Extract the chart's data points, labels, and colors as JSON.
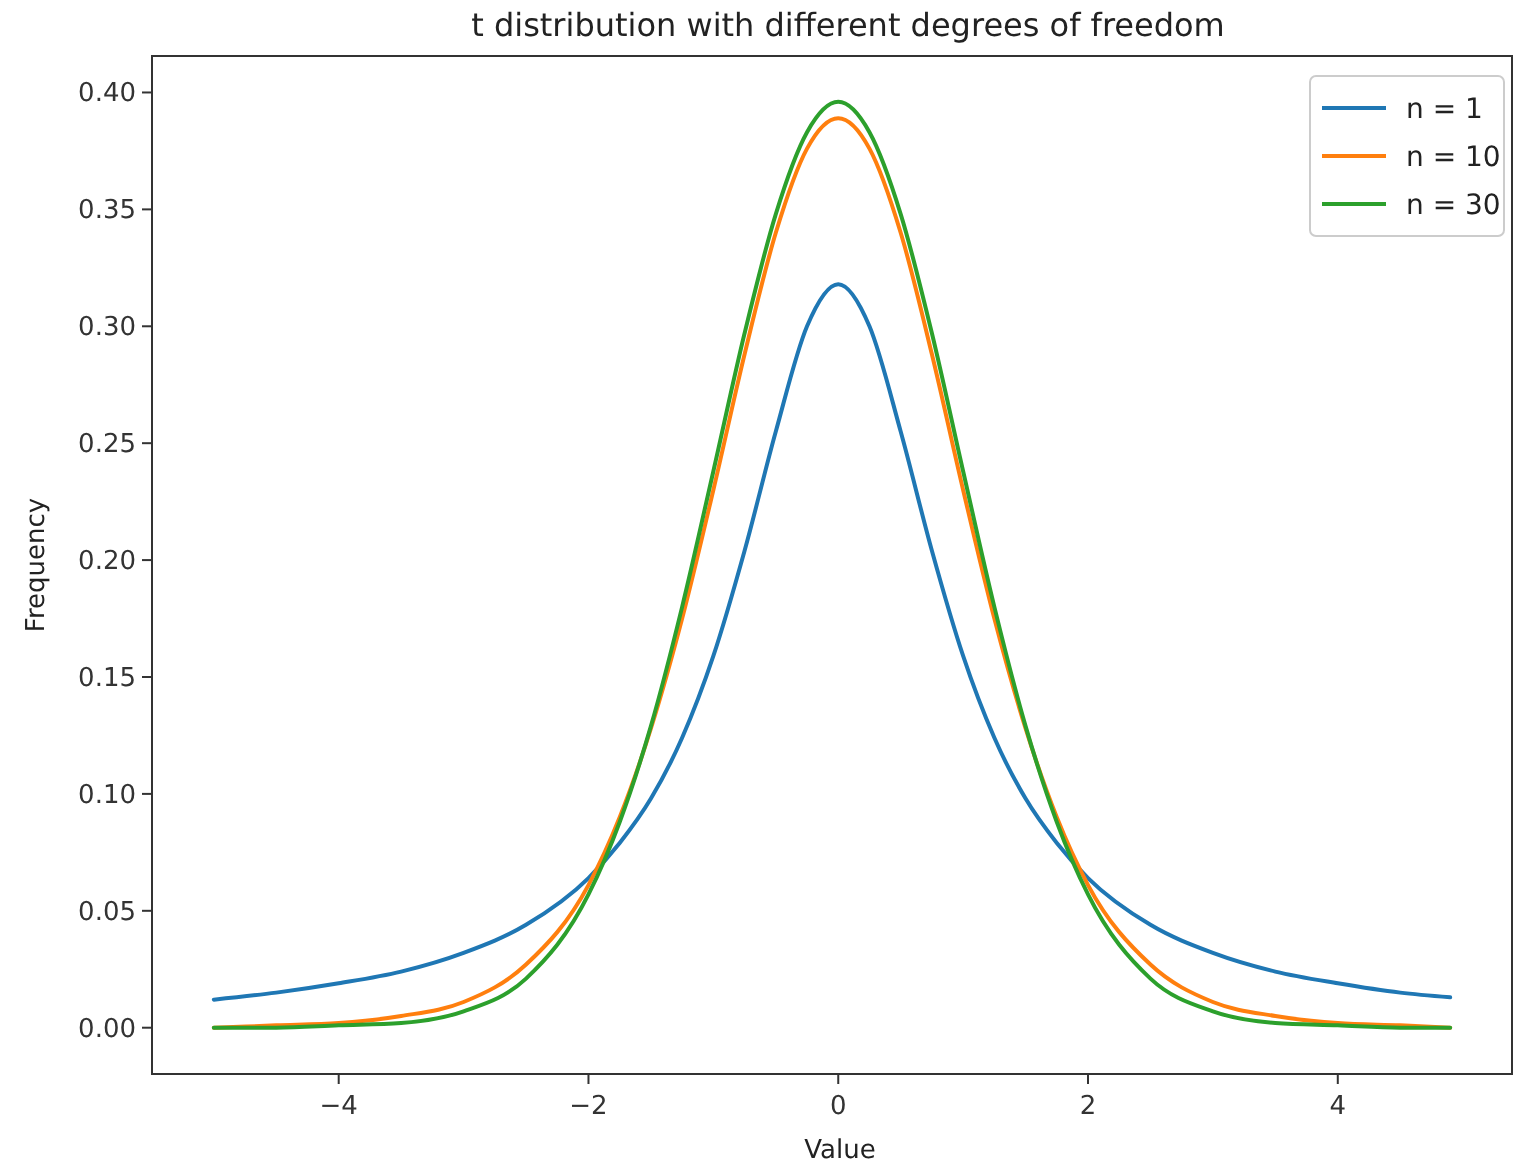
{
  "chart_data": {
    "type": "line",
    "title": "t distribution with different degrees of freedom",
    "xlabel": "Value",
    "ylabel": "Frequency",
    "x": [
      -5,
      -4.5,
      -4,
      -3.5,
      -3,
      -2.5,
      -2,
      -1.75,
      -1.5,
      -1.25,
      -1,
      -0.75,
      -0.5,
      -0.25,
      0,
      0.25,
      0.5,
      0.75,
      1,
      1.25,
      1.5,
      1.75,
      2,
      2.5,
      3,
      3.5,
      4,
      4.5,
      4.9
    ],
    "series": [
      {
        "name": "n = 1",
        "color": "#1f77b4",
        "values": [
          0.012,
          0.015,
          0.019,
          0.024,
          0.032,
          0.044,
          0.064,
          0.079,
          0.098,
          0.124,
          0.159,
          0.204,
          0.255,
          0.3,
          0.318,
          0.3,
          0.255,
          0.204,
          0.159,
          0.124,
          0.098,
          0.079,
          0.064,
          0.044,
          0.032,
          0.024,
          0.019,
          0.015,
          0.013
        ]
      },
      {
        "name": "n = 10",
        "color": "#ff7f0e",
        "values": [
          0.0,
          0.001,
          0.002,
          0.005,
          0.011,
          0.027,
          0.061,
          0.09,
          0.128,
          0.175,
          0.23,
          0.288,
          0.34,
          0.376,
          0.389,
          0.376,
          0.34,
          0.288,
          0.23,
          0.175,
          0.128,
          0.09,
          0.061,
          0.027,
          0.011,
          0.005,
          0.002,
          0.001,
          0.0
        ]
      },
      {
        "name": "n = 30",
        "color": "#2ca02c",
        "values": [
          0.0,
          0.0,
          0.001,
          0.002,
          0.007,
          0.021,
          0.057,
          0.088,
          0.129,
          0.18,
          0.238,
          0.297,
          0.348,
          0.383,
          0.396,
          0.383,
          0.348,
          0.297,
          0.238,
          0.18,
          0.129,
          0.088,
          0.057,
          0.021,
          0.007,
          0.002,
          0.001,
          0.0,
          0.0
        ]
      }
    ],
    "xlim": [
      -5.495,
      5.395
    ],
    "xticks": [
      {
        "value": -4,
        "label": "−4"
      },
      {
        "value": -2,
        "label": "−2"
      },
      0,
      2,
      4
    ],
    "ylim": [
      -0.0198,
      0.4156
    ],
    "yticks": [
      {
        "value": 0,
        "label": "0.00"
      },
      {
        "value": 0.05,
        "label": "0.05"
      },
      {
        "value": 0.1,
        "label": "0.10"
      },
      {
        "value": 0.15,
        "label": "0.15"
      },
      {
        "value": 0.2,
        "label": "0.20"
      },
      {
        "value": 0.25,
        "label": "0.25"
      },
      {
        "value": 0.3,
        "label": "0.30"
      },
      {
        "value": 0.35,
        "label": "0.35"
      },
      {
        "value": 0.4,
        "label": "0.40"
      }
    ],
    "legend": "top right",
    "grid": false,
    "line_style": "solid",
    "marker": "none"
  }
}
